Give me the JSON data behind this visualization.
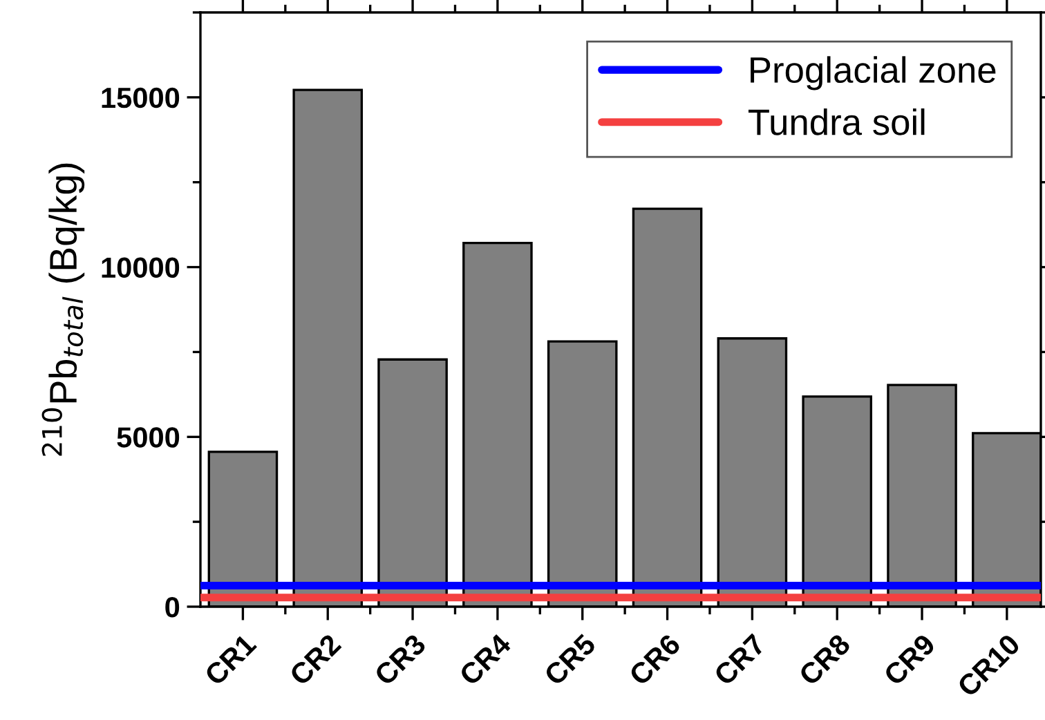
{
  "chart_data": {
    "type": "bar",
    "ylabel": "$^{210}$Pb$_{total}$ (Bq/kg)",
    "categories": [
      "CR1",
      "CR2",
      "CR3",
      "CR4",
      "CR5",
      "CR6",
      "CR7",
      "CR8",
      "CR9",
      "CR10"
    ],
    "values": [
      4560,
      15220,
      7280,
      10710,
      7810,
      11720,
      7900,
      6190,
      6530,
      5110
    ],
    "color": "#808080",
    "ylim": [
      0,
      17500
    ],
    "yticks": [
      0,
      5000,
      10000,
      15000
    ],
    "ref_lines": [
      {
        "axis": "y",
        "value": 620,
        "label": "Proglacial zone",
        "color": "#0000ff"
      },
      {
        "axis": "y",
        "value": 270,
        "label": "Tundra soil",
        "color": "#f44040"
      }
    ],
    "grid": false,
    "legend": "top right"
  }
}
